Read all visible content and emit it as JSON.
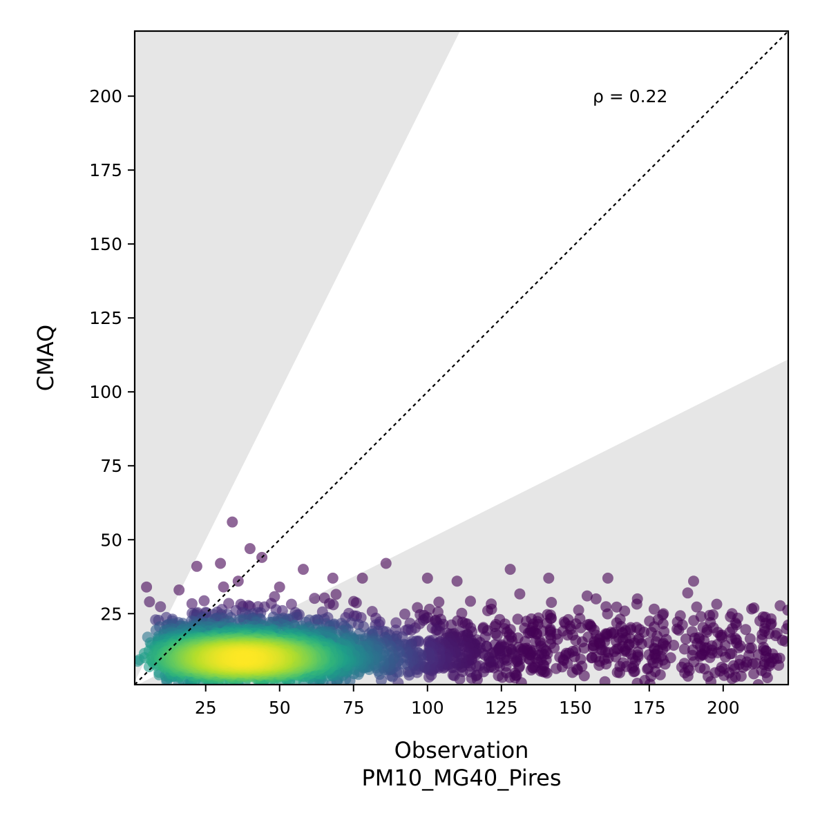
{
  "chart_data": {
    "type": "scatter",
    "xlabel": "Observation",
    "xlabel_line2": "PM10_MG40_Pires",
    "ylabel": "CMAQ",
    "annotation": "ρ = 0.22",
    "xlim": [
      1,
      222
    ],
    "ylim": [
      1,
      222
    ],
    "xticks": [
      25,
      50,
      75,
      100,
      125,
      150,
      175,
      200
    ],
    "yticks": [
      25,
      50,
      75,
      100,
      125,
      150,
      175,
      200
    ],
    "identity_line": true,
    "shaded_band": {
      "upper_slope": 2,
      "lower_slope": 0.5,
      "color": "#e6e6e6"
    },
    "colormap": "viridis",
    "marker_alpha": 0.6,
    "core_density": {
      "x_mean": 38,
      "x_spread": 22,
      "y_mean": 10,
      "y_spread": 6
    },
    "highlighted_points": [
      {
        "x": 34,
        "y": 56
      },
      {
        "x": 40,
        "y": 47
      },
      {
        "x": 44,
        "y": 44
      },
      {
        "x": 86,
        "y": 42
      },
      {
        "x": 22,
        "y": 41
      },
      {
        "x": 58,
        "y": 40
      },
      {
        "x": 128,
        "y": 40
      },
      {
        "x": 30,
        "y": 42
      },
      {
        "x": 141,
        "y": 37
      },
      {
        "x": 161,
        "y": 37
      },
      {
        "x": 190,
        "y": 36
      },
      {
        "x": 188,
        "y": 32
      },
      {
        "x": 171,
        "y": 30
      },
      {
        "x": 203,
        "y": 25
      },
      {
        "x": 5,
        "y": 34
      },
      {
        "x": 16,
        "y": 33
      },
      {
        "x": 6,
        "y": 29
      },
      {
        "x": 100,
        "y": 37
      },
      {
        "x": 110,
        "y": 36
      },
      {
        "x": 157,
        "y": 30
      },
      {
        "x": 154,
        "y": 31
      },
      {
        "x": 178,
        "y": 23
      },
      {
        "x": 214,
        "y": 20
      },
      {
        "x": 220,
        "y": 16
      },
      {
        "x": 210,
        "y": 8
      },
      {
        "x": 187,
        "y": 5
      },
      {
        "x": 202,
        "y": 5
      },
      {
        "x": 160,
        "y": 2
      },
      {
        "x": 165,
        "y": 5
      },
      {
        "x": 68,
        "y": 37
      },
      {
        "x": 78,
        "y": 37
      },
      {
        "x": 50,
        "y": 34
      },
      {
        "x": 36,
        "y": 36
      }
    ]
  }
}
